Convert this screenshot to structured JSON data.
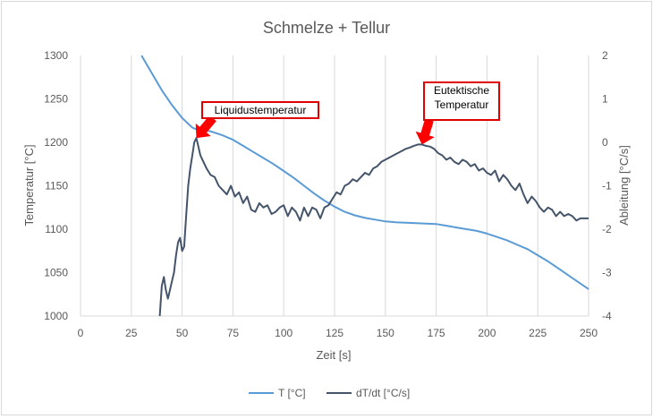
{
  "chart_data": {
    "type": "line",
    "title": "Schmelze + Tellur",
    "xlabel": "Zeit [s]",
    "ylabel": "Temperatur [°C]",
    "y2label": "Ableitung [°C/s]",
    "xlim": [
      0,
      250
    ],
    "ylim": [
      1000,
      1300
    ],
    "y2lim": [
      -4,
      2
    ],
    "xticks": [
      0,
      25,
      50,
      75,
      100,
      125,
      150,
      175,
      200,
      225,
      250
    ],
    "yticks": [
      1000,
      1050,
      1100,
      1150,
      1200,
      1250,
      1300
    ],
    "y2ticks": [
      -4,
      -3,
      -2,
      -1,
      0,
      1,
      2
    ],
    "grid": "vertical",
    "legend_position": "bottom",
    "series": [
      {
        "name": "T [°C]",
        "axis": "left",
        "color": "#5b9bd5",
        "points": [
          [
            30,
            1300
          ],
          [
            35,
            1280
          ],
          [
            40,
            1260
          ],
          [
            45,
            1243
          ],
          [
            50,
            1228
          ],
          [
            55,
            1217
          ],
          [
            57,
            1215
          ],
          [
            60,
            1215
          ],
          [
            65,
            1212
          ],
          [
            70,
            1208
          ],
          [
            75,
            1203
          ],
          [
            80,
            1196
          ],
          [
            85,
            1189
          ],
          [
            90,
            1182
          ],
          [
            95,
            1175
          ],
          [
            100,
            1167
          ],
          [
            105,
            1159
          ],
          [
            110,
            1150
          ],
          [
            115,
            1141
          ],
          [
            120,
            1133
          ],
          [
            125,
            1126
          ],
          [
            130,
            1120
          ],
          [
            135,
            1116
          ],
          [
            140,
            1113
          ],
          [
            145,
            1111
          ],
          [
            150,
            1109
          ],
          [
            155,
            1108
          ],
          [
            160,
            1107.5
          ],
          [
            165,
            1107
          ],
          [
            170,
            1106.5
          ],
          [
            175,
            1106
          ],
          [
            180,
            1104
          ],
          [
            185,
            1102
          ],
          [
            190,
            1100
          ],
          [
            195,
            1098
          ],
          [
            200,
            1095
          ],
          [
            205,
            1091
          ],
          [
            210,
            1087
          ],
          [
            215,
            1082
          ],
          [
            220,
            1077
          ],
          [
            225,
            1070
          ],
          [
            230,
            1063
          ],
          [
            235,
            1055
          ],
          [
            240,
            1047
          ],
          [
            245,
            1039
          ],
          [
            250,
            1031
          ]
        ]
      },
      {
        "name": "dT/dt [°C/s]",
        "axis": "right",
        "color": "#44546a",
        "points": [
          [
            39,
            -4
          ],
          [
            40,
            -3.3
          ],
          [
            41,
            -3.1
          ],
          [
            42,
            -3.4
          ],
          [
            43,
            -3.6
          ],
          [
            44,
            -3.4
          ],
          [
            45,
            -3.2
          ],
          [
            46,
            -3.0
          ],
          [
            47,
            -2.6
          ],
          [
            48,
            -2.3
          ],
          [
            49,
            -2.2
          ],
          [
            50,
            -2.5
          ],
          [
            51,
            -2.4
          ],
          [
            52,
            -1.7
          ],
          [
            53,
            -1.0
          ],
          [
            54,
            -0.6
          ],
          [
            55,
            -0.3
          ],
          [
            56,
            0.0
          ],
          [
            57,
            0.1
          ],
          [
            58,
            -0.1
          ],
          [
            59,
            -0.3
          ],
          [
            60,
            -0.4
          ],
          [
            62,
            -0.6
          ],
          [
            64,
            -0.75
          ],
          [
            66,
            -0.8
          ],
          [
            68,
            -1.0
          ],
          [
            70,
            -1.1
          ],
          [
            72,
            -1.2
          ],
          [
            74,
            -1.0
          ],
          [
            76,
            -1.25
          ],
          [
            78,
            -1.15
          ],
          [
            80,
            -1.4
          ],
          [
            82,
            -1.25
          ],
          [
            84,
            -1.55
          ],
          [
            86,
            -1.6
          ],
          [
            88,
            -1.4
          ],
          [
            90,
            -1.5
          ],
          [
            92,
            -1.45
          ],
          [
            94,
            -1.65
          ],
          [
            96,
            -1.6
          ],
          [
            98,
            -1.5
          ],
          [
            100,
            -1.45
          ],
          [
            102,
            -1.7
          ],
          [
            104,
            -1.5
          ],
          [
            106,
            -1.6
          ],
          [
            108,
            -1.8
          ],
          [
            110,
            -1.5
          ],
          [
            112,
            -1.7
          ],
          [
            114,
            -1.5
          ],
          [
            116,
            -1.55
          ],
          [
            118,
            -1.75
          ],
          [
            120,
            -1.5
          ],
          [
            122,
            -1.45
          ],
          [
            124,
            -1.3
          ],
          [
            126,
            -1.15
          ],
          [
            128,
            -1.2
          ],
          [
            130,
            -1.0
          ],
          [
            132,
            -0.95
          ],
          [
            134,
            -0.85
          ],
          [
            136,
            -0.9
          ],
          [
            138,
            -0.8
          ],
          [
            140,
            -0.7
          ],
          [
            142,
            -0.75
          ],
          [
            144,
            -0.6
          ],
          [
            146,
            -0.55
          ],
          [
            148,
            -0.45
          ],
          [
            150,
            -0.4
          ],
          [
            152,
            -0.35
          ],
          [
            154,
            -0.3
          ],
          [
            156,
            -0.25
          ],
          [
            158,
            -0.2
          ],
          [
            160,
            -0.15
          ],
          [
            162,
            -0.12
          ],
          [
            164,
            -0.08
          ],
          [
            166,
            -0.05
          ],
          [
            168,
            -0.05
          ],
          [
            170,
            -0.08
          ],
          [
            172,
            -0.1
          ],
          [
            174,
            -0.15
          ],
          [
            176,
            -0.25
          ],
          [
            178,
            -0.3
          ],
          [
            180,
            -0.4
          ],
          [
            182,
            -0.35
          ],
          [
            184,
            -0.45
          ],
          [
            186,
            -0.5
          ],
          [
            188,
            -0.4
          ],
          [
            190,
            -0.45
          ],
          [
            192,
            -0.55
          ],
          [
            194,
            -0.5
          ],
          [
            196,
            -0.65
          ],
          [
            198,
            -0.6
          ],
          [
            200,
            -0.7
          ],
          [
            202,
            -0.75
          ],
          [
            204,
            -0.65
          ],
          [
            206,
            -0.9
          ],
          [
            208,
            -0.75
          ],
          [
            210,
            -0.85
          ],
          [
            212,
            -1.0
          ],
          [
            214,
            -1.1
          ],
          [
            216,
            -0.95
          ],
          [
            218,
            -1.2
          ],
          [
            220,
            -1.4
          ],
          [
            222,
            -1.25
          ],
          [
            224,
            -1.35
          ],
          [
            226,
            -1.5
          ],
          [
            228,
            -1.6
          ],
          [
            230,
            -1.5
          ],
          [
            232,
            -1.55
          ],
          [
            234,
            -1.7
          ],
          [
            236,
            -1.6
          ],
          [
            238,
            -1.7
          ],
          [
            240,
            -1.65
          ],
          [
            242,
            -1.7
          ],
          [
            244,
            -1.8
          ],
          [
            246,
            -1.75
          ],
          [
            248,
            -1.75
          ],
          [
            250,
            -1.75
          ]
        ]
      }
    ],
    "annotations": [
      {
        "id": "liquidus",
        "text": [
          "Liquidustemperatur"
        ],
        "target": [
          57,
          0.1
        ]
      },
      {
        "id": "eutectic",
        "text": [
          "Eutektische",
          "Temperatur"
        ],
        "target": [
          168,
          -0.05
        ]
      }
    ]
  }
}
